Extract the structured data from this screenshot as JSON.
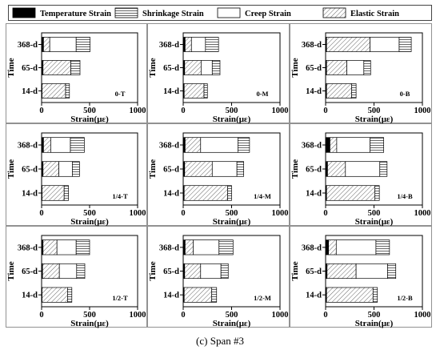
{
  "legend": {
    "items": [
      {
        "key": "temperature",
        "label": "Temperature Strain",
        "pattern": "solid"
      },
      {
        "key": "shrinkage",
        "label": "Shrinkage Strain",
        "pattern": "hlines"
      },
      {
        "key": "creep",
        "label": "Creep Strain",
        "pattern": "empty"
      },
      {
        "key": "elastic",
        "label": "Elastic Strain",
        "pattern": "diag"
      }
    ]
  },
  "caption": "(c) Span #3",
  "chart_data": [
    {
      "type": "bar",
      "orientation": "horizontal",
      "stacked": true,
      "panel_label": "0-T",
      "categories": [
        "368-d",
        "65-d",
        "14-d"
      ],
      "xlabel": "Strain(με)",
      "ylabel": "Time",
      "xlim": [
        0,
        1000
      ],
      "xticks": [
        0,
        500,
        1000
      ],
      "series": [
        {
          "name": "Temperature Strain",
          "values": [
            20,
            15,
            5
          ]
        },
        {
          "name": "Elastic Strain",
          "values": [
            65,
            290,
            245
          ]
        },
        {
          "name": "Creep Strain",
          "values": [
            275,
            0,
            0
          ]
        },
        {
          "name": "Shrinkage Strain",
          "values": [
            145,
            95,
            40
          ]
        }
      ]
    },
    {
      "type": "bar",
      "orientation": "horizontal",
      "stacked": true,
      "panel_label": "0-M",
      "categories": [
        "368-d",
        "65-d",
        "14-d"
      ],
      "xlabel": "Strain(με)",
      "ylabel": "Time",
      "xlim": [
        0,
        1000
      ],
      "xticks": [
        0,
        500,
        1000
      ],
      "series": [
        {
          "name": "Temperature Strain",
          "values": [
            20,
            15,
            10
          ]
        },
        {
          "name": "Elastic Strain",
          "values": [
            65,
            170,
            205
          ]
        },
        {
          "name": "Creep Strain",
          "values": [
            145,
            115,
            0
          ]
        },
        {
          "name": "Shrinkage Strain",
          "values": [
            135,
            80,
            35
          ]
        }
      ]
    },
    {
      "type": "bar",
      "orientation": "horizontal",
      "stacked": true,
      "panel_label": "0-B",
      "categories": [
        "368-d",
        "65-d",
        "14-d"
      ],
      "xlabel": "Strain(με)",
      "ylabel": "Time",
      "xlim": [
        0,
        1000
      ],
      "xticks": [
        0,
        500,
        1000
      ],
      "series": [
        {
          "name": "Temperature Strain",
          "values": [
            10,
            10,
            10
          ]
        },
        {
          "name": "Elastic Strain",
          "values": [
            450,
            210,
            260
          ]
        },
        {
          "name": "Creep Strain",
          "values": [
            300,
            175,
            0
          ]
        },
        {
          "name": "Shrinkage Strain",
          "values": [
            125,
            70,
            45
          ]
        }
      ]
    },
    {
      "type": "bar",
      "orientation": "horizontal",
      "stacked": true,
      "panel_label": "1/4-T",
      "categories": [
        "368-d",
        "65-d",
        "14-d"
      ],
      "xlabel": "Strain(με)",
      "ylabel": "Time",
      "xlim": [
        0,
        1000
      ],
      "xticks": [
        0,
        500,
        1000
      ],
      "series": [
        {
          "name": "Temperature Strain",
          "values": [
            20,
            15,
            5
          ]
        },
        {
          "name": "Elastic Strain",
          "values": [
            75,
            165,
            230
          ]
        },
        {
          "name": "Creep Strain",
          "values": [
            205,
            140,
            0
          ]
        },
        {
          "name": "Shrinkage Strain",
          "values": [
            145,
            75,
            45
          ]
        }
      ]
    },
    {
      "type": "bar",
      "orientation": "horizontal",
      "stacked": true,
      "panel_label": "1/4-M",
      "categories": [
        "368-d",
        "65-d",
        "14-d"
      ],
      "xlabel": "Strain(με)",
      "ylabel": "Time",
      "xlim": [
        0,
        1000
      ],
      "xticks": [
        0,
        500,
        1000
      ],
      "series": [
        {
          "name": "Temperature Strain",
          "values": [
            20,
            15,
            10
          ]
        },
        {
          "name": "Elastic Strain",
          "values": [
            160,
            285,
            450
          ]
        },
        {
          "name": "Creep Strain",
          "values": [
            385,
            255,
            0
          ]
        },
        {
          "name": "Shrinkage Strain",
          "values": [
            120,
            70,
            40
          ]
        }
      ]
    },
    {
      "type": "bar",
      "orientation": "horizontal",
      "stacked": true,
      "panel_label": "1/4-B",
      "categories": [
        "368-d",
        "65-d",
        "14-d"
      ],
      "xlabel": "Strain(με)",
      "ylabel": "Time",
      "xlim": [
        0,
        1000
      ],
      "xticks": [
        0,
        500,
        1000
      ],
      "series": [
        {
          "name": "Temperature Strain",
          "values": [
            45,
            20,
            10
          ]
        },
        {
          "name": "Elastic Strain",
          "values": [
            70,
            185,
            500
          ]
        },
        {
          "name": "Creep Strain",
          "values": [
            345,
            355,
            0
          ]
        },
        {
          "name": "Shrinkage Strain",
          "values": [
            140,
            75,
            45
          ]
        }
      ]
    },
    {
      "type": "bar",
      "orientation": "horizontal",
      "stacked": true,
      "panel_label": "1/2-T",
      "categories": [
        "368-d",
        "65-d",
        "14-d"
      ],
      "xlabel": "Strain(με)",
      "ylabel": "Time",
      "xlim": [
        0,
        1000
      ],
      "xticks": [
        0,
        500,
        1000
      ],
      "series": [
        {
          "name": "Temperature Strain",
          "values": [
            15,
            10,
            5
          ]
        },
        {
          "name": "Elastic Strain",
          "values": [
            145,
            175,
            265
          ]
        },
        {
          "name": "Creep Strain",
          "values": [
            200,
            180,
            0
          ]
        },
        {
          "name": "Shrinkage Strain",
          "values": [
            140,
            85,
            45
          ]
        }
      ]
    },
    {
      "type": "bar",
      "orientation": "horizontal",
      "stacked": true,
      "panel_label": "1/2-M",
      "categories": [
        "368-d",
        "65-d",
        "14-d"
      ],
      "xlabel": "Strain(με)",
      "ylabel": "Time",
      "xlim": [
        0,
        1000
      ],
      "xticks": [
        0,
        500,
        1000
      ],
      "series": [
        {
          "name": "Temperature Strain",
          "values": [
            20,
            15,
            10
          ]
        },
        {
          "name": "Elastic Strain",
          "values": [
            85,
            165,
            285
          ]
        },
        {
          "name": "Creep Strain",
          "values": [
            265,
            210,
            0
          ]
        },
        {
          "name": "Shrinkage Strain",
          "values": [
            145,
            75,
            50
          ]
        }
      ]
    },
    {
      "type": "bar",
      "orientation": "horizontal",
      "stacked": true,
      "panel_label": "1/2-B",
      "categories": [
        "368-d",
        "65-d",
        "14-d"
      ],
      "xlabel": "Strain(με)",
      "ylabel": "Time",
      "xlim": [
        0,
        1000
      ],
      "xticks": [
        0,
        500,
        1000
      ],
      "series": [
        {
          "name": "Temperature Strain",
          "values": [
            30,
            15,
            10
          ]
        },
        {
          "name": "Elastic Strain",
          "values": [
            80,
            300,
            480
          ]
        },
        {
          "name": "Creep Strain",
          "values": [
            410,
            325,
            0
          ]
        },
        {
          "name": "Shrinkage Strain",
          "values": [
            140,
            85,
            45
          ]
        }
      ]
    }
  ]
}
